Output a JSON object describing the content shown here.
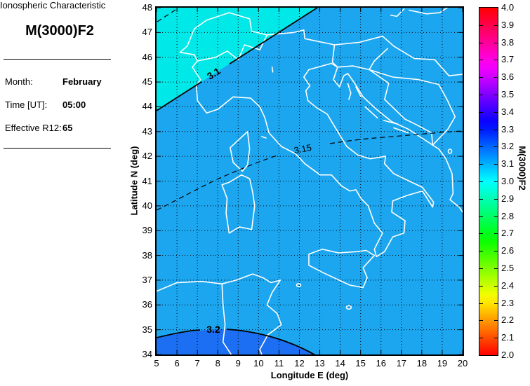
{
  "panel": {
    "title_line1": "Ionospheric Characteristic",
    "title_line2": "M(3000)F2",
    "rows": [
      {
        "label": "Month:",
        "value": "February"
      },
      {
        "label": "Time [UT]:",
        "value": "05:00"
      },
      {
        "label": "Effective R12:",
        "value": "65"
      }
    ]
  },
  "chart_data": {
    "type": "heatmap",
    "subtype": "filled_contour_map",
    "title": "M(3000)F2",
    "xlabel": "Longitude E (deg)",
    "ylabel": "Latitude N (deg)",
    "xlim": [
      5,
      20
    ],
    "ylim": [
      34,
      48
    ],
    "x_ticks": [
      "5",
      "6",
      "7",
      "8",
      "9",
      "10",
      "11",
      "12",
      "13",
      "14",
      "15",
      "16",
      "17",
      "18",
      "19",
      "20"
    ],
    "y_ticks": [
      "34",
      "35",
      "36",
      "37",
      "38",
      "39",
      "40",
      "41",
      "42",
      "43",
      "44",
      "45",
      "46",
      "47",
      "48"
    ],
    "grid": "dotted",
    "map_region": "Italy and central Mediterranean; coastlines and country borders drawn in white",
    "contours": [
      {
        "level": 3.05,
        "line": "dashed",
        "label": "",
        "location": "top-left corner"
      },
      {
        "level": 3.1,
        "line": "solid",
        "label": "3.1",
        "location": "diagonal from (5,43.9) to (12.7,48)"
      },
      {
        "level": 3.15,
        "line": "dashed",
        "label": "3.15",
        "location": "from (5,39.8) rising to (20,43.1)"
      },
      {
        "level": 3.2,
        "line": "solid",
        "label": "3.2",
        "location": "arc across bottom-left, peak near (8.4,35)"
      }
    ],
    "fills": [
      {
        "band": "3.0-3.1",
        "color": "#00E8E8",
        "where": "northwest of 3.1 contour"
      },
      {
        "band": "3.1-3.2",
        "color": "#1BA6EF",
        "where": "main map area"
      },
      {
        "band": "3.2-3.3",
        "color": "#1C6FF2",
        "where": "southwest of 3.2 contour"
      }
    ],
    "colorbar": {
      "label": "M(3000)F2",
      "min": 2.0,
      "max": 4.0,
      "colormap": "hsv",
      "tick_labels": [
        "4.0",
        "3.9",
        "3.8",
        "3.7",
        "3.6",
        "3.5",
        "3.4",
        "3.3",
        "3.2",
        "3.1",
        "3.0",
        "2.9",
        "2.8",
        "2.7",
        "2.6",
        "2.5",
        "2.4",
        "2.3",
        "2.2",
        "2.1",
        "2.0"
      ]
    }
  }
}
